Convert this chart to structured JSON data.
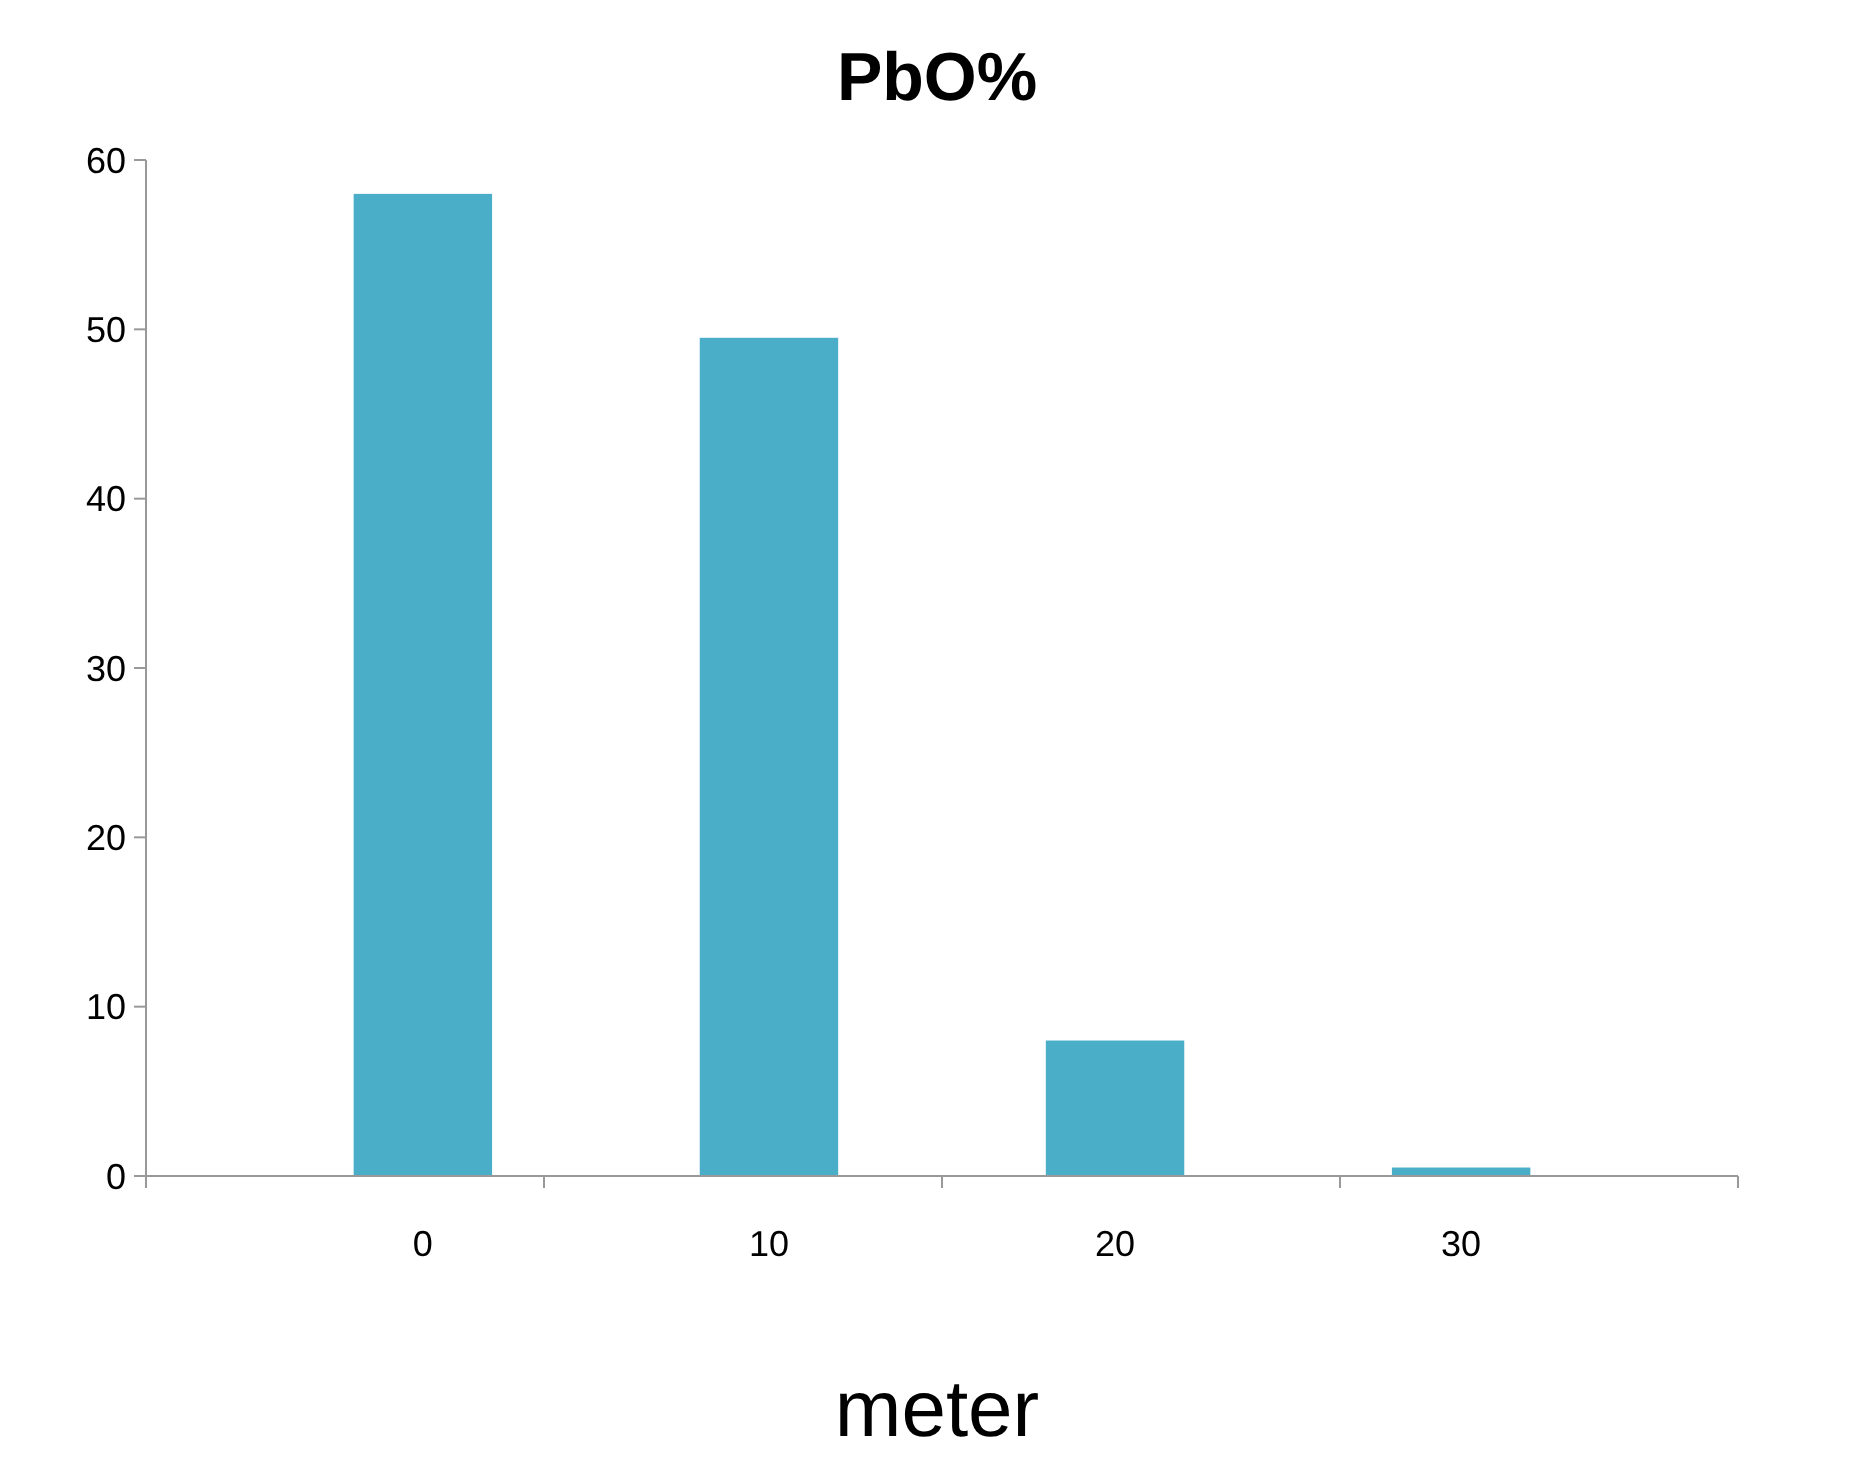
{
  "chart_data": {
    "type": "bar",
    "title": "PbO%",
    "xlabel": "meter",
    "categories": [
      "0",
      "10",
      "20",
      "30"
    ],
    "values": [
      58,
      49.5,
      8,
      0.5
    ],
    "color": "#4aaec8",
    "ylim": [
      0,
      60
    ],
    "yticks": [
      0,
      10,
      20,
      30,
      40,
      50,
      60
    ],
    "grid": false
  }
}
